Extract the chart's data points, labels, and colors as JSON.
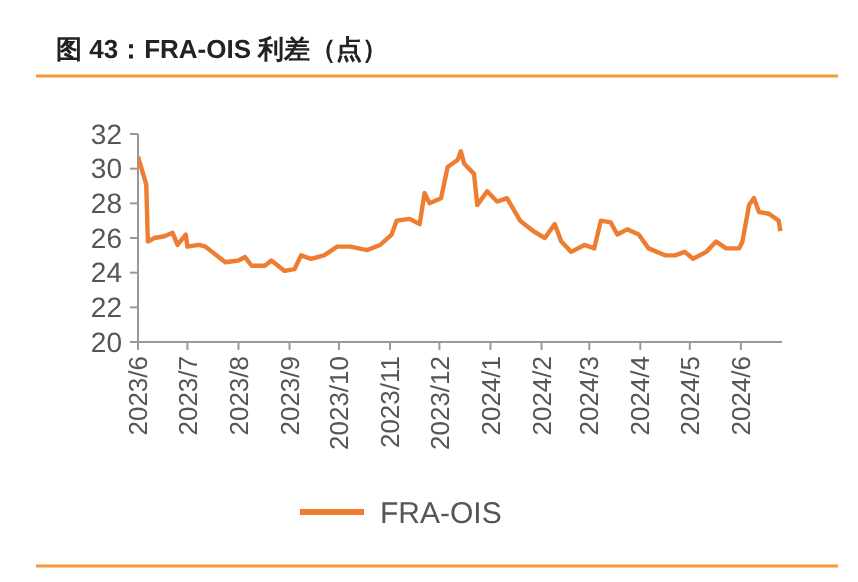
{
  "chart_data": {
    "type": "line",
    "title": "图 43：FRA-OIS 利差（点）",
    "legend": "bottom",
    "grid": false,
    "xlim": [
      "2023-06-01",
      "2024-06-26"
    ],
    "xticks": [
      {
        "value": "2023-06-01",
        "label": "2023/6"
      },
      {
        "value": "2023-07-01",
        "label": "2023/7"
      },
      {
        "value": "2023-08-01",
        "label": "2023/8"
      },
      {
        "value": "2023-09-01",
        "label": "2023/9"
      },
      {
        "value": "2023-10-01",
        "label": "2023/10"
      },
      {
        "value": "2023-11-01",
        "label": "2023/11"
      },
      {
        "value": "2023-12-01",
        "label": "2023/12"
      },
      {
        "value": "2024-01-01",
        "label": "2024/1"
      },
      {
        "value": "2024-02-01",
        "label": "2024/2"
      },
      {
        "value": "2024-03-01",
        "label": "2024/3"
      },
      {
        "value": "2024-04-01",
        "label": "2024/4"
      },
      {
        "value": "2024-05-01",
        "label": "2024/5"
      },
      {
        "value": "2024-06-01",
        "label": "2024/6"
      }
    ],
    "ylim": [
      20,
      32
    ],
    "yticks": [
      20,
      22,
      24,
      26,
      28,
      30,
      32
    ],
    "series": [
      {
        "name": "FRA-OIS",
        "color": "#ee7d31",
        "x": [
          "2023-06-01",
          "2023-06-06",
          "2023-06-07",
          "2023-06-11",
          "2023-06-17",
          "2023-06-22",
          "2023-06-25",
          "2023-06-30",
          "2023-07-01",
          "2023-07-08",
          "2023-07-12",
          "2023-07-16",
          "2023-07-24",
          "2023-08-01",
          "2023-08-05",
          "2023-08-09",
          "2023-08-17",
          "2023-08-21",
          "2023-08-29",
          "2023-09-04",
          "2023-09-08",
          "2023-09-14",
          "2023-09-22",
          "2023-09-30",
          "2023-10-08",
          "2023-10-18",
          "2023-10-26",
          "2023-11-02",
          "2023-11-05",
          "2023-11-13",
          "2023-11-19",
          "2023-11-22",
          "2023-11-25",
          "2023-12-02",
          "2023-12-06",
          "2023-12-12",
          "2023-12-14",
          "2023-12-16",
          "2023-12-22",
          "2023-12-24",
          "2023-12-30",
          "2024-01-05",
          "2024-01-11",
          "2024-01-19",
          "2024-01-27",
          "2024-02-03",
          "2024-02-09",
          "2024-02-13",
          "2024-02-19",
          "2024-02-27",
          "2024-03-04",
          "2024-03-08",
          "2024-03-14",
          "2024-03-18",
          "2024-03-24",
          "2024-03-31",
          "2024-04-06",
          "2024-04-16",
          "2024-04-22",
          "2024-04-28",
          "2024-05-03",
          "2024-05-11",
          "2024-05-17",
          "2024-05-23",
          "2024-05-31",
          "2024-06-02",
          "2024-06-06",
          "2024-06-09",
          "2024-06-12",
          "2024-06-18",
          "2024-06-24",
          "2024-06-25"
        ],
        "values": [
          30.7,
          29.1,
          25.8,
          26.0,
          26.1,
          26.3,
          25.6,
          26.2,
          25.5,
          25.6,
          25.5,
          25.2,
          24.6,
          24.7,
          24.9,
          24.4,
          24.4,
          24.7,
          24.1,
          24.2,
          25.0,
          24.8,
          25.0,
          25.5,
          25.5,
          25.3,
          25.6,
          26.2,
          27.0,
          27.1,
          26.8,
          28.6,
          28.0,
          28.3,
          30.1,
          30.5,
          31.0,
          30.3,
          29.7,
          27.9,
          28.7,
          28.1,
          28.3,
          27.0,
          26.4,
          26.0,
          26.8,
          25.8,
          25.2,
          25.6,
          25.4,
          27.0,
          26.9,
          26.2,
          26.5,
          26.2,
          25.4,
          25.0,
          25.0,
          25.2,
          24.8,
          25.2,
          25.8,
          25.4,
          25.4,
          25.8,
          27.9,
          28.3,
          27.5,
          27.4,
          27.0,
          26.4
        ]
      }
    ]
  }
}
